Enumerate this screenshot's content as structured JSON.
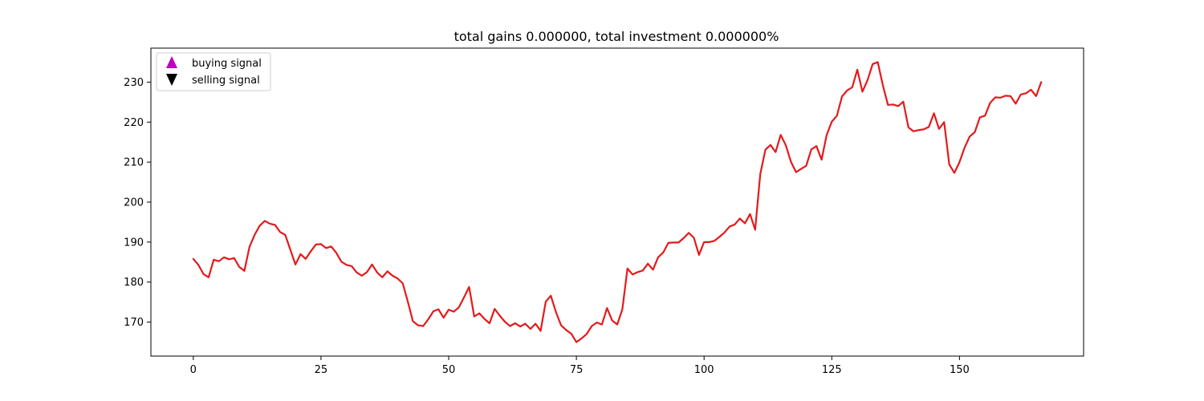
{
  "chart_data": {
    "type": "line",
    "title": "total gains 0.000000, total investment 0.000000%",
    "xlabel": "",
    "ylabel": "",
    "xlim": [
      -8.3,
      174.3
    ],
    "ylim": [
      161.5,
      238.5
    ],
    "xticks": [
      0,
      25,
      50,
      75,
      100,
      125,
      150
    ],
    "yticks": [
      170,
      180,
      190,
      200,
      210,
      220,
      230
    ],
    "grid": false,
    "legend_position": "upper-left",
    "legend": [
      {
        "label": "buying signal",
        "marker": "triangle-up",
        "color": "#bf00bf"
      },
      {
        "label": "selling signal",
        "marker": "triangle-down",
        "color": "#000000"
      }
    ],
    "series": [
      {
        "color": "#e31a1c",
        "x_start": 0,
        "values": [
          185.8,
          184.3,
          182.0,
          181.2,
          185.6,
          185.2,
          186.2,
          185.7,
          186.0,
          183.8,
          182.8,
          188.8,
          191.8,
          194.1,
          195.3,
          194.6,
          194.3,
          192.5,
          191.8,
          188.1,
          184.4,
          187.0,
          185.8,
          187.7,
          189.4,
          189.5,
          188.5,
          188.9,
          187.3,
          185.1,
          184.3,
          184.0,
          182.4,
          181.6,
          182.5,
          184.4,
          182.4,
          181.2,
          182.7,
          181.6,
          180.9,
          179.7,
          175.1,
          170.2,
          169.2,
          169.0,
          170.7,
          172.7,
          173.2,
          171.1,
          173.1,
          172.6,
          173.7,
          176.2,
          178.8,
          171.4,
          172.2,
          170.8,
          169.7,
          173.3,
          171.6,
          170.1,
          169.0,
          169.7,
          168.9,
          169.6,
          168.3,
          169.6,
          167.8,
          175.1,
          176.6,
          172.5,
          169.2,
          168.0,
          167.1,
          165.0,
          165.9,
          167.0,
          169.0,
          169.9,
          169.4,
          173.5,
          170.4,
          169.4,
          173.2,
          183.4,
          181.9,
          182.5,
          182.9,
          184.6,
          183.1,
          186.2,
          187.4,
          189.8,
          189.9,
          189.9,
          191.0,
          192.3,
          191.1,
          186.8,
          190.0,
          190.0,
          190.3,
          191.3,
          192.4,
          193.9,
          194.4,
          195.9,
          194.7,
          197.0,
          193.1,
          207.0,
          213.1,
          214.3,
          212.5,
          216.8,
          214.2,
          210.1,
          207.5,
          208.3,
          209.1,
          213.2,
          214.0,
          210.6,
          216.8,
          220.1,
          221.6,
          226.4,
          227.9,
          228.7,
          233.1,
          227.6,
          230.5,
          234.5,
          235.0,
          229.2,
          224.3,
          224.4,
          224.0,
          225.1,
          218.7,
          217.7,
          218.0,
          218.2,
          218.8,
          222.2,
          218.3,
          220.0,
          209.4,
          207.3,
          210.0,
          213.6,
          216.4,
          217.5,
          221.2,
          221.6,
          224.8,
          226.2,
          226.1,
          226.6,
          226.5,
          224.6,
          226.9,
          227.2,
          228.1,
          226.5,
          230.0
        ]
      }
    ]
  }
}
